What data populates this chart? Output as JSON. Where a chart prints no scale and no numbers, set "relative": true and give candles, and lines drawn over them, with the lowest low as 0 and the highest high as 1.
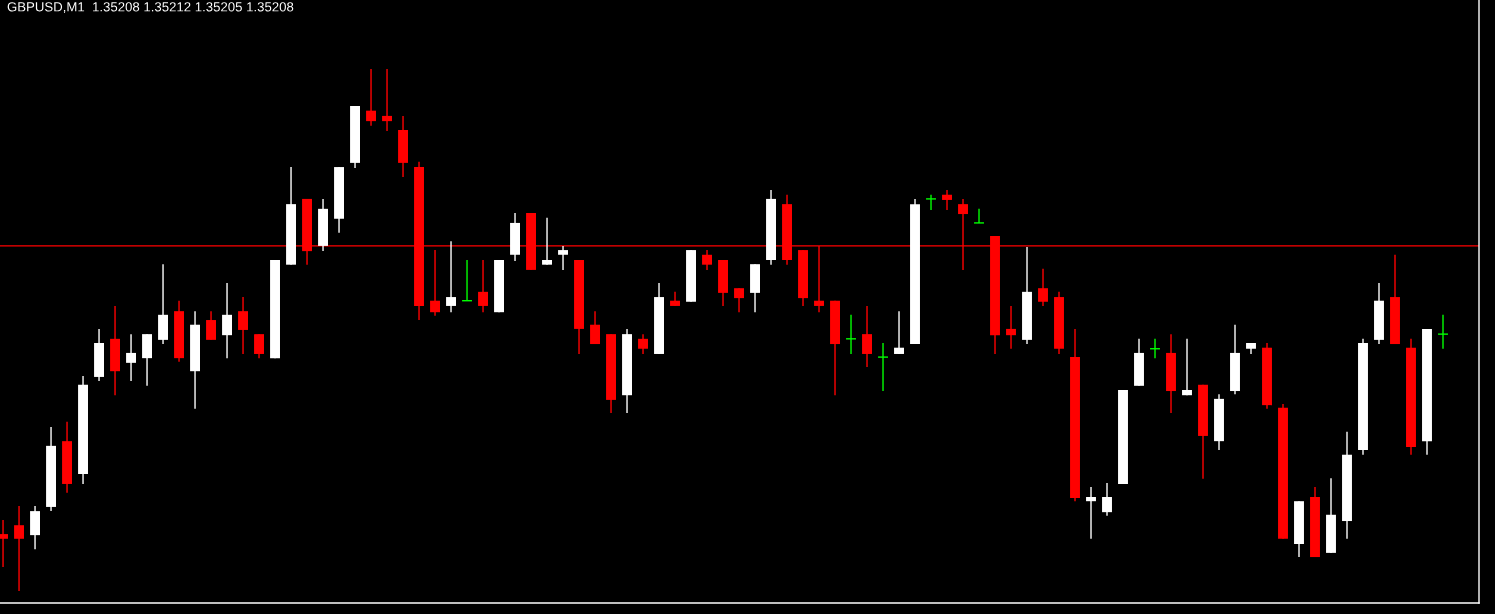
{
  "chart_data": {
    "type": "candlestick",
    "title": "GBPUSD,M1  1.35208 1.35212 1.35205 1.35208",
    "relative": true,
    "categories": [
      null,
      null,
      null,
      null,
      null,
      null,
      null,
      null,
      null,
      null,
      null,
      null,
      null,
      null,
      null,
      null,
      null,
      null,
      null,
      null,
      null,
      null,
      null,
      null,
      null,
      null,
      null,
      null,
      null,
      null,
      null,
      null,
      null,
      null,
      null,
      null,
      null,
      null,
      null,
      null,
      null,
      null,
      null,
      null,
      null,
      null,
      null,
      null,
      null,
      null,
      null,
      null,
      null,
      null,
      null,
      null,
      null,
      null,
      null,
      null,
      null,
      null,
      null,
      null,
      null,
      null,
      null,
      null,
      null,
      null,
      null,
      null,
      null,
      null,
      null,
      null,
      null,
      null,
      null,
      null,
      null,
      null,
      null,
      null,
      null,
      null,
      null,
      null,
      null,
      null,
      null
    ],
    "ohlc": [
      [
        0.109,
        0.136,
        0.046,
        0.1
      ],
      [
        0.126,
        0.163,
        0.0,
        0.1
      ],
      [
        0.107,
        0.163,
        0.08,
        0.153
      ],
      [
        0.161,
        0.314,
        0.153,
        0.278
      ],
      [
        0.287,
        0.324,
        0.188,
        0.205
      ],
      [
        0.224,
        0.412,
        0.205,
        0.395
      ],
      [
        0.41,
        0.502,
        0.402,
        0.475
      ],
      [
        0.483,
        0.546,
        0.375,
        0.421
      ],
      [
        0.437,
        0.492,
        0.402,
        0.456
      ],
      [
        0.446,
        0.492,
        0.393,
        0.492
      ],
      [
        0.481,
        0.626,
        0.473,
        0.529
      ],
      [
        0.536,
        0.556,
        0.439,
        0.446
      ],
      [
        0.421,
        0.536,
        0.349,
        0.51
      ],
      [
        0.519,
        0.536,
        0.481,
        0.481
      ],
      [
        0.49,
        0.59,
        0.446,
        0.529
      ],
      [
        0.536,
        0.563,
        0.454,
        0.5
      ],
      [
        0.492,
        0.492,
        0.446,
        0.454
      ],
      [
        0.446,
        0.634,
        0.446,
        0.634
      ],
      [
        0.625,
        0.812,
        0.625,
        0.741
      ],
      [
        0.751,
        0.751,
        0.625,
        0.651
      ],
      [
        0.661,
        0.751,
        0.651,
        0.732
      ],
      [
        0.713,
        0.812,
        0.686,
        0.812
      ],
      [
        0.82,
        0.929,
        0.81,
        0.929
      ],
      [
        0.92,
        1.0,
        0.891,
        0.9
      ],
      [
        0.91,
        1.0,
        0.881,
        0.9
      ],
      [
        0.883,
        0.91,
        0.793,
        0.82
      ],
      [
        0.812,
        0.822,
        0.519,
        0.546
      ],
      [
        0.556,
        0.653,
        0.527,
        0.534
      ],
      [
        0.546,
        0.67,
        0.534,
        0.563
      ],
      [
        0.556,
        0.634,
        0.556,
        0.556
      ],
      [
        0.573,
        0.634,
        0.534,
        0.546
      ],
      [
        0.534,
        0.634,
        0.534,
        0.634
      ],
      [
        0.644,
        0.724,
        0.632,
        0.705
      ],
      [
        0.724,
        0.724,
        0.615,
        0.615
      ],
      [
        0.625,
        0.715,
        0.625,
        0.634
      ],
      [
        0.644,
        0.661,
        0.615,
        0.653
      ],
      [
        0.634,
        0.634,
        0.454,
        0.502
      ],
      [
        0.51,
        0.536,
        0.473,
        0.473
      ],
      [
        0.492,
        0.492,
        0.341,
        0.366
      ],
      [
        0.375,
        0.502,
        0.341,
        0.492
      ],
      [
        0.483,
        0.492,
        0.454,
        0.464
      ],
      [
        0.454,
        0.59,
        0.454,
        0.563
      ],
      [
        0.556,
        0.573,
        0.546,
        0.546
      ],
      [
        0.554,
        0.653,
        0.554,
        0.653
      ],
      [
        0.644,
        0.653,
        0.615,
        0.625
      ],
      [
        0.634,
        0.634,
        0.546,
        0.571
      ],
      [
        0.58,
        0.58,
        0.534,
        0.561
      ],
      [
        0.571,
        0.626,
        0.534,
        0.626
      ],
      [
        0.634,
        0.768,
        0.625,
        0.751
      ],
      [
        0.741,
        0.759,
        0.625,
        0.634
      ],
      [
        0.653,
        0.653,
        0.546,
        0.561
      ],
      [
        0.556,
        0.661,
        0.534,
        0.546
      ],
      [
        0.556,
        0.556,
        0.375,
        0.473
      ],
      [
        0.483,
        0.529,
        0.454,
        0.483
      ],
      [
        0.492,
        0.546,
        0.429,
        0.454
      ],
      [
        0.448,
        0.475,
        0.383,
        0.448
      ],
      [
        0.454,
        0.536,
        0.454,
        0.466
      ],
      [
        0.473,
        0.751,
        0.473,
        0.741
      ],
      [
        0.751,
        0.759,
        0.73,
        0.751
      ],
      [
        0.759,
        0.768,
        0.73,
        0.749
      ],
      [
        0.741,
        0.751,
        0.615,
        0.722
      ],
      [
        0.705,
        0.732,
        0.705,
        0.705
      ],
      [
        0.68,
        0.68,
        0.454,
        0.49
      ],
      [
        0.502,
        0.546,
        0.464,
        0.49
      ],
      [
        0.481,
        0.659,
        0.473,
        0.573
      ],
      [
        0.58,
        0.617,
        0.546,
        0.554
      ],
      [
        0.563,
        0.573,
        0.454,
        0.464
      ],
      [
        0.448,
        0.502,
        0.172,
        0.178
      ],
      [
        0.172,
        0.199,
        0.1,
        0.18
      ],
      [
        0.151,
        0.207,
        0.144,
        0.18
      ],
      [
        0.205,
        0.385,
        0.205,
        0.385
      ],
      [
        0.393,
        0.483,
        0.393,
        0.456
      ],
      [
        0.464,
        0.483,
        0.446,
        0.464
      ],
      [
        0.456,
        0.492,
        0.341,
        0.383
      ],
      [
        0.375,
        0.483,
        0.375,
        0.385
      ],
      [
        0.395,
        0.395,
        0.215,
        0.297
      ],
      [
        0.287,
        0.377,
        0.27,
        0.368
      ],
      [
        0.383,
        0.51,
        0.377,
        0.456
      ],
      [
        0.464,
        0.475,
        0.454,
        0.475
      ],
      [
        0.466,
        0.475,
        0.349,
        0.356
      ],
      [
        0.351,
        0.358,
        0.1,
        0.1
      ],
      [
        0.09,
        0.172,
        0.065,
        0.172
      ],
      [
        0.18,
        0.199,
        0.065,
        0.065
      ],
      [
        0.073,
        0.216,
        0.073,
        0.146
      ],
      [
        0.134,
        0.305,
        0.1,
        0.261
      ],
      [
        0.27,
        0.483,
        0.261,
        0.475
      ],
      [
        0.481,
        0.59,
        0.473,
        0.556
      ],
      [
        0.563,
        0.644,
        0.473,
        0.473
      ],
      [
        0.466,
        0.483,
        0.261,
        0.276
      ],
      [
        0.287,
        0.502,
        0.261,
        0.502
      ],
      [
        0.492,
        0.529,
        0.464,
        0.492
      ]
    ],
    "colors": [
      "#ff0000",
      "#ff0000",
      "#ffffff",
      "#ffffff",
      "#ff0000",
      "#ffffff",
      "#ffffff",
      "#ff0000",
      "#ffffff",
      "#ffffff",
      "#ffffff",
      "#ff0000",
      "#ffffff",
      "#ff0000",
      "#ffffff",
      "#ff0000",
      "#ff0000",
      "#ffffff",
      "#ffffff",
      "#ff0000",
      "#ffffff",
      "#ffffff",
      "#ffffff",
      "#ff0000",
      "#ff0000",
      "#ff0000",
      "#ff0000",
      "#ff0000",
      "#ffffff",
      "#00ff00",
      "#ff0000",
      "#ffffff",
      "#ffffff",
      "#ff0000",
      "#ffffff",
      "#ffffff",
      "#ff0000",
      "#ff0000",
      "#ff0000",
      "#ffffff",
      "#ff0000",
      "#ffffff",
      "#ff0000",
      "#ffffff",
      "#ff0000",
      "#ff0000",
      "#ff0000",
      "#ffffff",
      "#ffffff",
      "#ff0000",
      "#ff0000",
      "#ff0000",
      "#ff0000",
      "#00ff00",
      "#ff0000",
      "#00ff00",
      "#ffffff",
      "#ffffff",
      "#00ff00",
      "#ff0000",
      "#ff0000",
      "#00ff00",
      "#ff0000",
      "#ff0000",
      "#ffffff",
      "#ff0000",
      "#ff0000",
      "#ff0000",
      "#ffffff",
      "#ffffff",
      "#ffffff",
      "#ffffff",
      "#00ff00",
      "#ff0000",
      "#ffffff",
      "#ff0000",
      "#ffffff",
      "#ffffff",
      "#ffffff",
      "#ff0000",
      "#ff0000",
      "#ffffff",
      "#ff0000",
      "#ffffff",
      "#ffffff",
      "#ffffff",
      "#ffffff",
      "#ff0000",
      "#ff0000",
      "#ffffff",
      "#00ff00"
    ],
    "ref_lines": [
      {
        "axis": "y",
        "value": 0.661,
        "color": "#ff0000"
      }
    ]
  }
}
